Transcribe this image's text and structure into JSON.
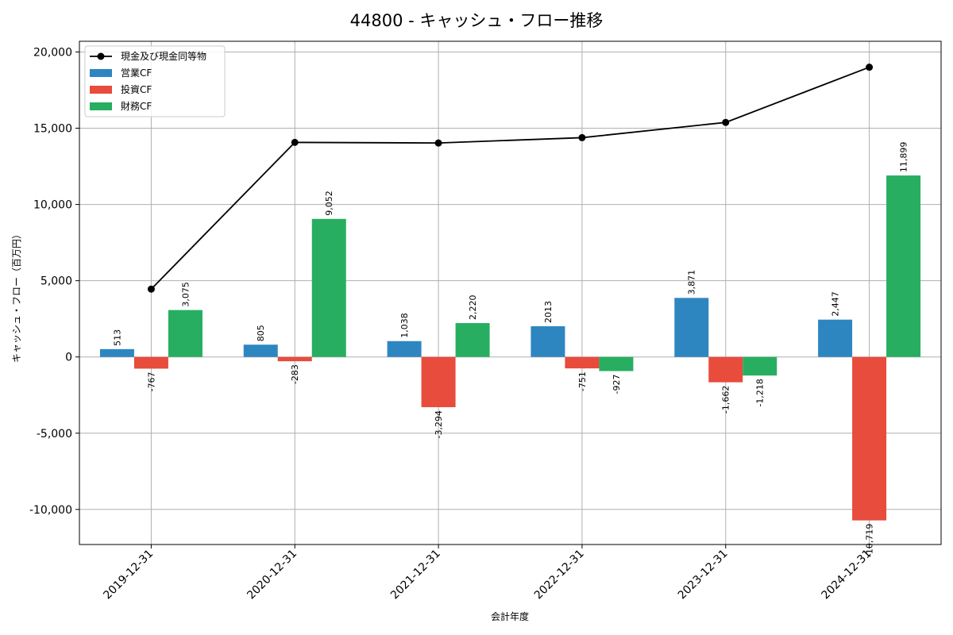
{
  "chart_data": {
    "type": "bar",
    "title": "44800 - キャッシュ・フロー推移",
    "xlabel": "会計年度",
    "ylabel": "キャッシュ・フロー（百万円）",
    "ylim": [
      -12300,
      20700
    ],
    "yticks": [
      -10000,
      -5000,
      0,
      5000,
      10000,
      15000,
      20000
    ],
    "ytick_labels": [
      "-10,000",
      "-5,000",
      "0",
      "5,000",
      "10,000",
      "15,000",
      "20,000"
    ],
    "grid": true,
    "legend_position": "top-left",
    "categories": [
      "2019-12-31",
      "2020-12-31",
      "2021-12-31",
      "2022-12-31",
      "2023-12-31",
      "2024-12-31"
    ],
    "series": [
      {
        "name": "営業CF",
        "kind": "bar",
        "color": "#2e86c1",
        "values": [
          513,
          805,
          1038,
          2013,
          3871,
          2447
        ],
        "labels": [
          "513",
          "805",
          "1,038",
          "2013",
          "3,871",
          "2,447"
        ]
      },
      {
        "name": "投資CF",
        "kind": "bar",
        "color": "#e74c3c",
        "values": [
          -767,
          -283,
          -3294,
          -751,
          -1662,
          -10719
        ],
        "labels": [
          "-767",
          "-283",
          "-3,294",
          "-751",
          "-1,662",
          "-10,719"
        ]
      },
      {
        "name": "財務CF",
        "kind": "bar",
        "color": "#27ae60",
        "values": [
          3075,
          9052,
          2220,
          -927,
          -1218,
          11899
        ],
        "labels": [
          "3,075",
          "9,052",
          "2,220",
          "-927",
          "-1,218",
          "11,899"
        ]
      }
    ],
    "line_series": {
      "name": "現金及び現金同等物",
      "kind": "line",
      "color": "#000000",
      "values": [
        4450,
        14070,
        14030,
        14380,
        15380,
        19000
      ]
    }
  }
}
